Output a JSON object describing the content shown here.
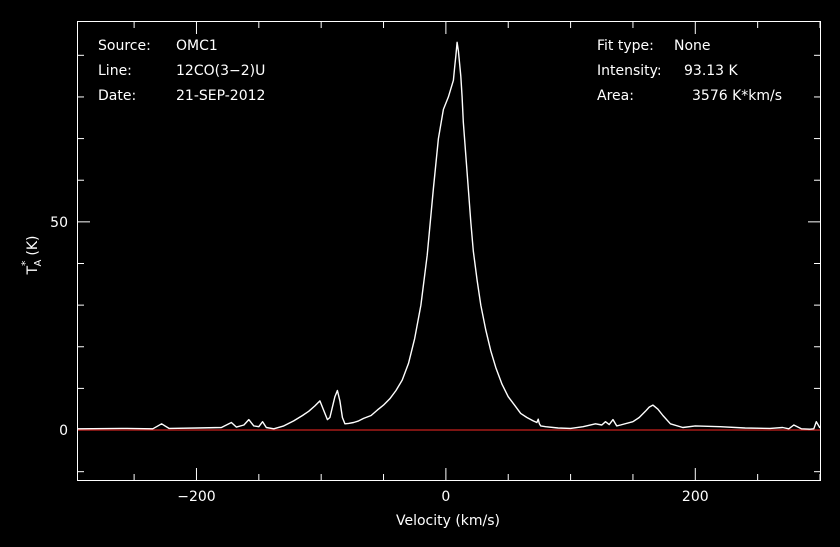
{
  "chart_data": {
    "type": "line",
    "title": "",
    "xlabel": "Velocity (km/s)",
    "ylabel": {
      "symbol": "T",
      "subscript": "A",
      "superscript": "*",
      "unit": "(K)"
    },
    "xlim": [
      -295,
      300
    ],
    "ylim": [
      -12,
      98
    ],
    "x_ticks": [
      -200,
      0,
      200
    ],
    "x_tick_labels": [
      "−200",
      "0",
      "200"
    ],
    "y_ticks": [
      0,
      50
    ],
    "y_tick_labels": [
      "0",
      "50"
    ],
    "grid": false,
    "info_left": [
      {
        "key": "Source:",
        "value": "OMC1"
      },
      {
        "key": "Line:",
        "value": "12CO(3−2)U"
      },
      {
        "key": "Date:",
        "value": "21-SEP-2012"
      }
    ],
    "info_right": [
      {
        "key": "Fit type:",
        "value": "None"
      },
      {
        "key": "Intensity:",
        "value": "93.13 K"
      },
      {
        "key": "Area:",
        "value": "3576 K*km/s"
      }
    ],
    "baseline": {
      "y": 0,
      "color": "#c8201e"
    },
    "series": [
      {
        "color": "#ffffff",
        "x": [
          -295,
          -260,
          -235,
          -228,
          -222,
          -200,
          -180,
          -172,
          -168,
          -162,
          -158,
          -154,
          -150,
          -147,
          -144,
          -138,
          -130,
          -122,
          -115,
          -110,
          -105,
          -101,
          -97,
          -95,
          -93,
          -91,
          -89,
          -87,
          -85,
          -83,
          -81,
          -78,
          -74,
          -70,
          -66,
          -60,
          -55,
          -50,
          -45,
          -40,
          -35,
          -30,
          -25,
          -20,
          -15,
          -10,
          -6,
          -2,
          2,
          4,
          6,
          7,
          8,
          9,
          10,
          11,
          12,
          13,
          14,
          16,
          18,
          20,
          22,
          25,
          28,
          32,
          36,
          40,
          45,
          50,
          55,
          60,
          65,
          70,
          73,
          74,
          75,
          76,
          80,
          90,
          100,
          110,
          120,
          125,
          128,
          131,
          134,
          137,
          140,
          150,
          155,
          160,
          163,
          166,
          170,
          174,
          180,
          190,
          200,
          220,
          240,
          260,
          270,
          275,
          279,
          285,
          292,
          295,
          297,
          300
        ],
        "y": [
          0.3,
          0.4,
          0.3,
          1.5,
          0.4,
          0.5,
          0.6,
          1.8,
          0.7,
          1.2,
          2.5,
          1.0,
          0.8,
          2.0,
          0.6,
          0.3,
          1.0,
          2.2,
          3.5,
          4.5,
          5.8,
          7.0,
          4.0,
          2.5,
          3.0,
          5.5,
          8.0,
          9.5,
          7.0,
          3.0,
          1.5,
          1.6,
          1.8,
          2.2,
          2.8,
          3.5,
          4.8,
          6.0,
          7.5,
          9.5,
          12,
          16,
          22,
          30,
          42,
          58,
          70,
          77,
          80,
          82,
          84,
          87,
          90,
          93.13,
          91,
          88,
          85,
          80,
          74,
          66,
          58,
          50,
          43,
          36,
          30,
          24,
          19,
          15,
          11,
          8,
          6,
          4,
          3,
          2.2,
          1.8,
          2.6,
          1.5,
          1.0,
          0.8,
          0.5,
          0.4,
          0.8,
          1.5,
          1.2,
          2.0,
          1.3,
          2.5,
          1.0,
          1.2,
          2.0,
          3.0,
          4.5,
          5.5,
          6.0,
          5.0,
          3.5,
          1.5,
          0.6,
          1.0,
          0.8,
          0.5,
          0.4,
          0.6,
          0.3,
          1.2,
          0.3,
          0.2,
          0.3,
          2.0,
          0.5
        ]
      }
    ]
  }
}
